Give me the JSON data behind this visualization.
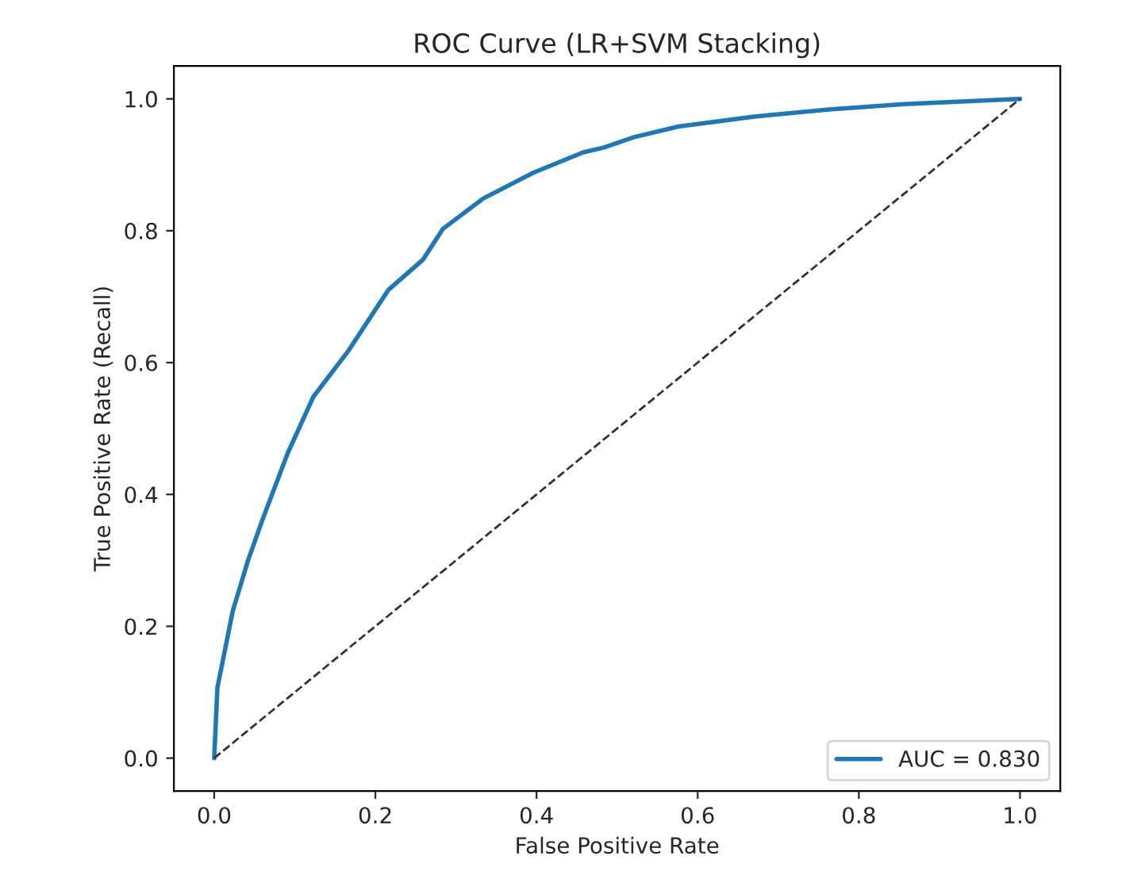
{
  "chart_data": {
    "type": "line",
    "title": "ROC Curve (LR+SVM Stacking)",
    "xlabel": "False Positive Rate",
    "ylabel": "True Positive Rate (Recall)",
    "xlim": [
      -0.05,
      1.05
    ],
    "ylim": [
      -0.05,
      1.05
    ],
    "xticks": [
      {
        "value": 0,
        "label": "0.0"
      },
      {
        "value": 0.2,
        "label": "0.2"
      },
      {
        "value": 0.4,
        "label": "0.4"
      },
      {
        "value": 0.6,
        "label": "0.6"
      },
      {
        "value": 0.8,
        "label": "0.8"
      },
      {
        "value": 1,
        "label": "1.0"
      }
    ],
    "yticks": [
      {
        "value": 0,
        "label": "0.0"
      },
      {
        "value": 0.2,
        "label": "0.2"
      },
      {
        "value": 0.4,
        "label": "0.4"
      },
      {
        "value": 0.6,
        "label": "0.6"
      },
      {
        "value": 0.8,
        "label": "0.8"
      },
      {
        "value": 1,
        "label": "1.0"
      }
    ],
    "series": [
      {
        "name": "AUC = 0.830",
        "color": "#1f77b4",
        "line_style": "solid",
        "x": [
          0,
          0.004,
          0.023,
          0.042,
          0.06,
          0.091,
          0.123,
          0.166,
          0.216,
          0.259,
          0.284,
          0.334,
          0.396,
          0.458,
          0.483,
          0.521,
          0.576,
          0.67,
          0.763,
          0.856,
          1.0
        ],
        "values": [
          0,
          0.107,
          0.223,
          0.3,
          0.362,
          0.462,
          0.548,
          0.617,
          0.71,
          0.756,
          0.803,
          0.849,
          0.888,
          0.919,
          0.926,
          0.942,
          0.958,
          0.973,
          0.984,
          0.992,
          1.0
        ]
      },
      {
        "color": "#333333",
        "line_style": "dashed",
        "x": [
          0,
          1
        ],
        "values": [
          0,
          1
        ]
      }
    ],
    "legend": "bottom right",
    "grid": false
  }
}
